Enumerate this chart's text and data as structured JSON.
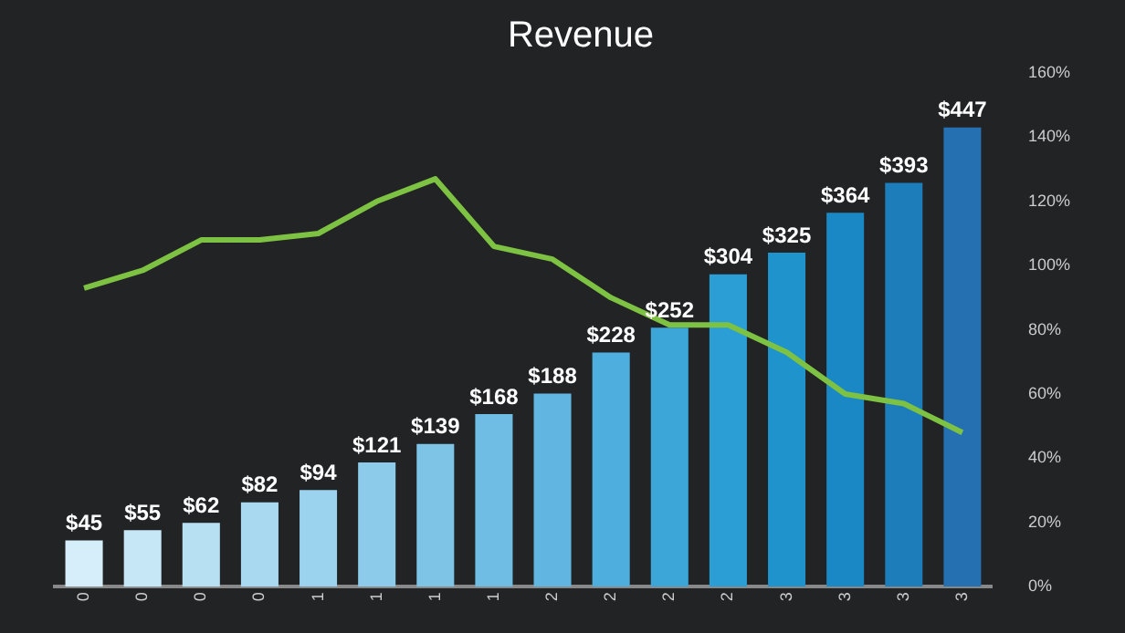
{
  "chart_data": {
    "type": "bar",
    "title": "Revenue",
    "categories": [
      "0",
      "0",
      "0",
      "0",
      "1",
      "1",
      "1",
      "1",
      "2",
      "2",
      "2",
      "2",
      "3",
      "3",
      "3",
      "3"
    ],
    "series": [
      {
        "colors": [
          "#d6eef9",
          "#c6e7f6",
          "#b8e0f3",
          "#a9d9f0",
          "#9bd2ed",
          "#8ccbea",
          "#7ec4e7",
          "#6fbde4",
          "#60b6e1",
          "#4eaedd",
          "#3ca6d9",
          "#2a9ed5",
          "#1e93cc",
          "#1a88c4",
          "#1d7dbb",
          "#2470b0"
        ],
        "values": [
          45,
          55,
          62,
          82,
          94,
          121,
          139,
          168,
          188,
          228,
          252,
          304,
          325,
          364,
          393,
          447
        ],
        "value_labels": [
          "$45",
          "$55",
          "$62",
          "$82",
          "$94",
          "$121",
          "$139",
          "$168",
          "$188",
          "$228",
          "$252",
          "$304",
          "$325",
          "$364",
          "$393",
          "$447"
        ]
      },
      {
        "type": "line",
        "axis": "y2",
        "color": "#7dc242",
        "values": [
          93,
          98.5,
          108,
          108,
          110,
          120,
          127,
          106,
          102,
          90,
          81.5,
          81.5,
          73,
          60,
          57,
          48
        ]
      }
    ],
    "y2lim": [
      0,
      160
    ],
    "y2ticks": [
      {
        "value": 0,
        "label": "0%"
      },
      {
        "value": 20,
        "label": "20%"
      },
      {
        "value": 40,
        "label": "40%"
      },
      {
        "value": 60,
        "label": "60%"
      },
      {
        "value": 80,
        "label": "80%"
      },
      {
        "value": 100,
        "label": "100%"
      },
      {
        "value": 120,
        "label": "120%"
      },
      {
        "value": 140,
        "label": "140%"
      },
      {
        "value": 160,
        "label": "160%"
      }
    ],
    "grid": false,
    "legend": false,
    "marker": "none"
  }
}
